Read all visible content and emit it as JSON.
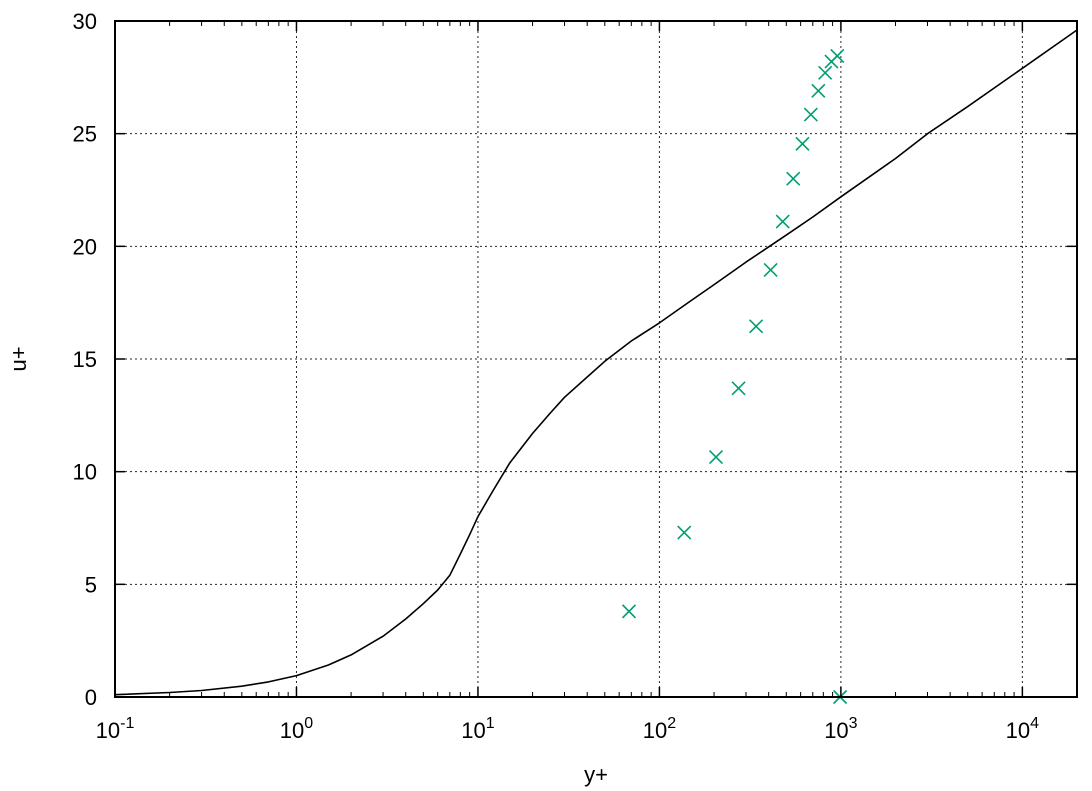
{
  "chart_data": {
    "type": "line",
    "title": "",
    "xlabel": "y+",
    "ylabel": "u+",
    "xscale": "log",
    "xlim": [
      0.1,
      20000
    ],
    "ylim": [
      0,
      30
    ],
    "grid": true,
    "legend": "none",
    "x_ticks": [
      {
        "value": 0.1,
        "base": "10",
        "exp": "-1"
      },
      {
        "value": 1,
        "base": "10",
        "exp": "0"
      },
      {
        "value": 10,
        "base": "10",
        "exp": "1"
      },
      {
        "value": 100,
        "base": "10",
        "exp": "2"
      },
      {
        "value": 1000,
        "base": "10",
        "exp": "3"
      },
      {
        "value": 10000,
        "base": "10",
        "exp": "4"
      }
    ],
    "y_ticks": [
      {
        "value": 0,
        "label": "0"
      },
      {
        "value": 5,
        "label": "5"
      },
      {
        "value": 10,
        "label": "10"
      },
      {
        "value": 15,
        "label": "15"
      },
      {
        "value": 20,
        "label": "20"
      },
      {
        "value": 25,
        "label": "25"
      },
      {
        "value": 30,
        "label": "30"
      }
    ],
    "series": [
      {
        "kind": "line",
        "color": "#000000",
        "x": [
          0.1,
          0.2,
          0.3,
          0.5,
          0.7,
          1,
          1.5,
          2,
          3,
          4,
          5,
          6,
          7,
          8,
          9,
          10,
          12,
          15,
          20,
          25,
          30,
          40,
          50,
          70,
          100,
          150,
          200,
          300,
          500,
          700,
          1000,
          2000,
          3000,
          5000,
          10000,
          20000
        ],
        "y": [
          0.1,
          0.2,
          0.29,
          0.48,
          0.67,
          0.95,
          1.42,
          1.87,
          2.7,
          3.46,
          4.14,
          4.75,
          5.4,
          6.35,
          7.2,
          8.0,
          9.1,
          10.4,
          11.7,
          12.6,
          13.3,
          14.2,
          14.9,
          15.8,
          16.6,
          17.6,
          18.3,
          19.3,
          20.5,
          21.3,
          22.2,
          23.9,
          25.0,
          26.2,
          27.9,
          29.6
        ]
      },
      {
        "kind": "scatter",
        "color": "#009e73",
        "marker": "x",
        "x": [
          68,
          137,
          205,
          273,
          341,
          410,
          478,
          546,
          614,
          683,
          751,
          819,
          887,
          955,
          990
        ],
        "y": [
          3.8,
          7.3,
          10.65,
          13.7,
          16.45,
          18.95,
          21.1,
          23.0,
          24.55,
          25.85,
          26.9,
          27.7,
          28.2,
          28.45,
          0.0
        ]
      }
    ]
  }
}
